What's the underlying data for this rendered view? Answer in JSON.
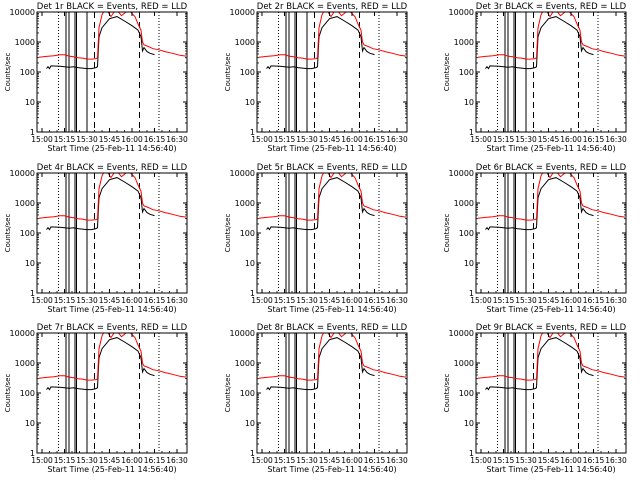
{
  "chart_data": [
    {
      "type": "line",
      "title": "Det 1r BLACK = Events, RED = LLD",
      "xlabel": "Start Time (25-Feb-11 14:56:40)",
      "ylabel": "Counts/sec",
      "yscale": "log",
      "ylim": [
        1,
        10000
      ],
      "x_ticks": [
        "15:00",
        "15:15",
        "15:30",
        "15:45",
        "16:00",
        "16:15",
        "16:30"
      ],
      "y_ticks": [
        "1",
        "10",
        "100",
        "1000",
        "10000"
      ]
    },
    {
      "type": "line",
      "title": "Det 2r BLACK = Events, RED = LLD",
      "xlabel": "Start Time (25-Feb-11 14:56:40)",
      "ylabel": "Counts/sec",
      "yscale": "log",
      "ylim": [
        1,
        10000
      ],
      "x_ticks": [
        "15:00",
        "15:15",
        "15:30",
        "15:45",
        "16:00",
        "16:15",
        "16:30"
      ],
      "y_ticks": [
        "1",
        "10",
        "100",
        "1000",
        "10000"
      ]
    },
    {
      "type": "line",
      "title": "Det 3r BLACK = Events, RED = LLD",
      "xlabel": "Start Time (25-Feb-11 14:56:40)",
      "ylabel": "Counts/sec",
      "yscale": "log",
      "ylim": [
        1,
        10000
      ],
      "x_ticks": [
        "15:00",
        "15:15",
        "15:30",
        "15:45",
        "16:00",
        "16:15",
        "16:30"
      ],
      "y_ticks": [
        "1",
        "10",
        "100",
        "1000",
        "10000"
      ]
    },
    {
      "type": "line",
      "title": "Det 4r BLACK = Events, RED = LLD",
      "xlabel": "Start Time (25-Feb-11 14:56:40)",
      "ylabel": "Counts/sec",
      "yscale": "log",
      "ylim": [
        1,
        10000
      ],
      "x_ticks": [
        "15:00",
        "15:15",
        "15:30",
        "15:45",
        "16:00",
        "16:15",
        "16:30"
      ],
      "y_ticks": [
        "1",
        "10",
        "100",
        "1000",
        "10000"
      ]
    },
    {
      "type": "line",
      "title": "Det 5r BLACK = Events, RED = LLD",
      "xlabel": "Start Time (25-Feb-11 14:56:40)",
      "ylabel": "Counts/sec",
      "yscale": "log",
      "ylim": [
        1,
        10000
      ],
      "x_ticks": [
        "15:00",
        "15:15",
        "15:30",
        "15:45",
        "16:00",
        "16:15",
        "16:30"
      ],
      "y_ticks": [
        "1",
        "10",
        "100",
        "1000",
        "10000"
      ]
    },
    {
      "type": "line",
      "title": "Det 6r BLACK = Events, RED = LLD",
      "xlabel": "Start Time (25-Feb-11 14:56:40)",
      "ylabel": "Counts/sec",
      "yscale": "log",
      "ylim": [
        1,
        10000
      ],
      "x_ticks": [
        "15:00",
        "15:15",
        "15:30",
        "15:45",
        "16:00",
        "16:15",
        "16:30"
      ],
      "y_ticks": [
        "1",
        "10",
        "100",
        "1000",
        "10000"
      ]
    },
    {
      "type": "line",
      "title": "Det 7r BLACK = Events, RED = LLD",
      "xlabel": "Start Time (25-Feb-11 14:56:40)",
      "ylabel": "Counts/sec",
      "yscale": "log",
      "ylim": [
        1,
        10000
      ],
      "x_ticks": [
        "15:00",
        "15:15",
        "15:30",
        "15:45",
        "16:00",
        "16:15",
        "16:30"
      ],
      "y_ticks": [
        "1",
        "10",
        "100",
        "1000",
        "10000"
      ]
    },
    {
      "type": "line",
      "title": "Det 8r BLACK = Events, RED = LLD",
      "xlabel": "Start Time (25-Feb-11 14:56:40)",
      "ylabel": "Counts/sec",
      "yscale": "log",
      "ylim": [
        1,
        10000
      ],
      "x_ticks": [
        "15:00",
        "15:15",
        "15:30",
        "15:45",
        "16:00",
        "16:15",
        "16:30"
      ],
      "y_ticks": [
        "1",
        "10",
        "100",
        "1000",
        "10000"
      ]
    },
    {
      "type": "line",
      "title": "Det 9r BLACK = Events, RED = LLD",
      "xlabel": "Start Time (25-Feb-11 14:56:40)",
      "ylabel": "Counts/sec",
      "yscale": "log",
      "ylim": [
        1,
        10000
      ],
      "x_ticks": [
        "15:00",
        "15:15",
        "15:30",
        "15:45",
        "16:00",
        "16:15",
        "16:30"
      ],
      "y_ticks": [
        "1",
        "10",
        "100",
        "1000",
        "10000"
      ]
    }
  ],
  "series": {
    "events": {
      "legend": "BLACK = Events",
      "color": "#000000",
      "points": [
        [
          "15:03",
          130
        ],
        [
          "15:04",
          150
        ],
        [
          "15:05",
          130
        ],
        [
          "15:06",
          160
        ],
        [
          "15:12",
          155
        ],
        [
          "15:15",
          150
        ],
        [
          "15:18",
          145
        ],
        [
          "15:21",
          150
        ],
        [
          "15:24",
          140
        ],
        [
          "15:27",
          135
        ],
        [
          "15:30",
          130
        ],
        [
          "15:33",
          130
        ],
        [
          "15:36",
          140
        ],
        [
          "15:37",
          150
        ],
        [
          "15:38",
          1500
        ],
        [
          "15:40",
          3000
        ],
        [
          "15:45",
          6000
        ],
        [
          "15:50",
          7000
        ],
        [
          "15:55",
          5000
        ],
        [
          "16:00",
          3500
        ],
        [
          "16:04",
          2500
        ],
        [
          "16:06",
          1500
        ],
        [
          "16:07",
          500
        ],
        [
          "16:08",
          650
        ],
        [
          "16:10",
          480
        ],
        [
          "16:12",
          420
        ],
        [
          "16:15",
          380
        ]
      ]
    },
    "lld": {
      "legend": "RED = LLD",
      "color": "#ff0000",
      "points": [
        [
          "14:58",
          310
        ],
        [
          "15:03",
          330
        ],
        [
          "15:08",
          350
        ],
        [
          "15:12",
          375
        ],
        [
          "15:15",
          375
        ],
        [
          "15:18",
          340
        ],
        [
          "15:21",
          320
        ],
        [
          "15:24",
          300
        ],
        [
          "15:27",
          290
        ],
        [
          "15:30",
          270
        ],
        [
          "15:33",
          270
        ],
        [
          "15:36",
          280
        ],
        [
          "15:37",
          300
        ],
        [
          "15:38",
          3000
        ],
        [
          "15:40",
          8000
        ],
        [
          "15:41",
          10000
        ],
        [
          "15:44",
          10000
        ],
        [
          "15:46",
          7000
        ],
        [
          "15:48",
          10000
        ],
        [
          "15:51",
          10000
        ],
        [
          "15:53",
          7500
        ],
        [
          "15:56",
          10000
        ],
        [
          "15:59",
          10000
        ],
        [
          "16:02",
          7000
        ],
        [
          "16:04",
          4000
        ],
        [
          "16:06",
          2500
        ],
        [
          "16:07",
          1000
        ],
        [
          "16:08",
          800
        ],
        [
          "16:11",
          700
        ],
        [
          "16:14",
          600
        ],
        [
          "16:18",
          550
        ],
        [
          "16:22",
          480
        ],
        [
          "16:27",
          420
        ],
        [
          "16:32",
          360
        ],
        [
          "16:36",
          340
        ]
      ]
    }
  },
  "markers": {
    "solid_vertical": [
      "15:16",
      "15:18",
      "15:22",
      "15:23",
      "15:30"
    ],
    "dashed_vertical": [
      "15:35",
      "16:05"
    ],
    "dotted_vertical": [
      "15:11",
      "16:18"
    ]
  }
}
